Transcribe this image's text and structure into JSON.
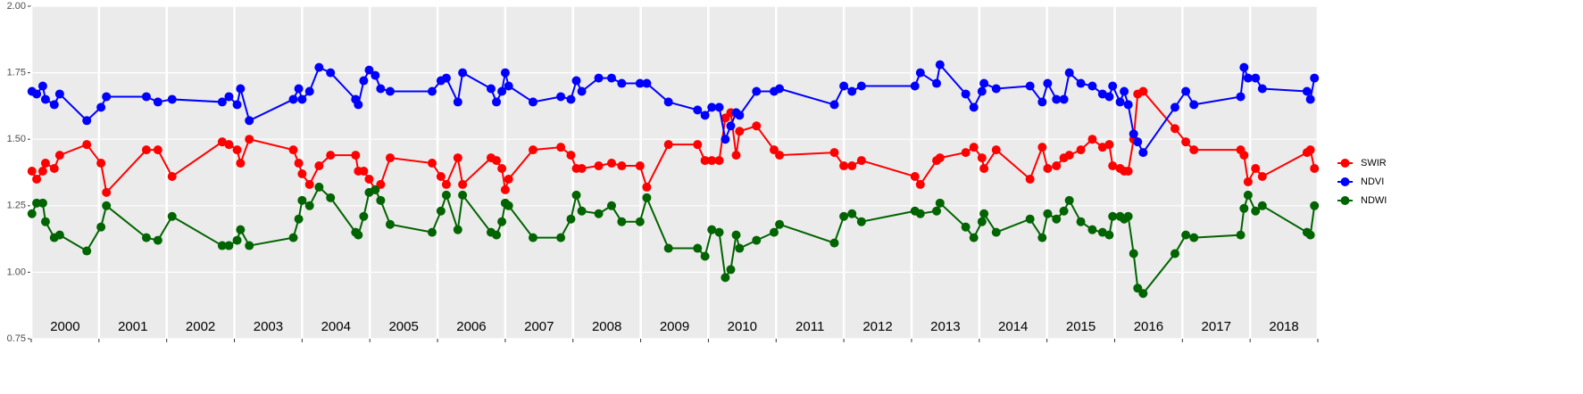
{
  "chart_data": {
    "type": "line",
    "x": [
      2000.01,
      2000.08,
      2000.17,
      2000.21,
      2000.34,
      2000.42,
      2000.82,
      2001.03,
      2001.11,
      2001.7,
      2001.87,
      2002.08,
      2002.82,
      2002.92,
      2003.04,
      2003.09,
      2003.22,
      2003.87,
      2003.95,
      2004.0,
      2004.11,
      2004.25,
      2004.42,
      2004.79,
      2004.83,
      2004.91,
      2004.99,
      2005.08,
      2005.16,
      2005.3,
      2005.92,
      2006.05,
      2006.13,
      2006.3,
      2006.37,
      2006.79,
      2006.87,
      2006.95,
      2007.0,
      2007.05,
      2007.41,
      2007.82,
      2007.97,
      2008.05,
      2008.13,
      2008.38,
      2008.57,
      2008.72,
      2008.99,
      2009.09,
      2009.41,
      2009.84,
      2009.95,
      2010.05,
      2010.16,
      2010.25,
      2010.33,
      2010.41,
      2010.46,
      2010.71,
      2010.97,
      2011.05,
      2011.86,
      2012.0,
      2012.12,
      2012.26,
      2013.05,
      2013.13,
      2013.37,
      2013.42,
      2013.8,
      2013.92,
      2014.04,
      2014.07,
      2014.25,
      2014.75,
      2014.93,
      2015.01,
      2015.14,
      2015.25,
      2015.33,
      2015.5,
      2015.67,
      2015.82,
      2015.92,
      2015.97,
      2016.08,
      2016.14,
      2016.2,
      2016.28,
      2016.34,
      2016.42,
      2016.89,
      2017.05,
      2017.17,
      2017.86,
      2017.91,
      2017.97,
      2018.08,
      2018.18,
      2018.84,
      2018.89,
      2018.95
    ],
    "series": [
      {
        "name": "SWIR",
        "color": "#ff0000",
        "values": [
          1.38,
          1.35,
          1.38,
          1.41,
          1.39,
          1.44,
          1.48,
          1.41,
          1.3,
          1.46,
          1.46,
          1.36,
          1.49,
          1.48,
          1.46,
          1.41,
          1.5,
          1.46,
          1.41,
          1.37,
          1.33,
          1.4,
          1.44,
          1.44,
          1.38,
          1.38,
          1.35,
          1.31,
          1.33,
          1.43,
          1.41,
          1.36,
          1.33,
          1.43,
          1.33,
          1.43,
          1.42,
          1.39,
          1.31,
          1.35,
          1.46,
          1.47,
          1.44,
          1.39,
          1.39,
          1.4,
          1.41,
          1.4,
          1.4,
          1.32,
          1.48,
          1.48,
          1.42,
          1.42,
          1.42,
          1.58,
          1.6,
          1.44,
          1.53,
          1.55,
          1.46,
          1.44,
          1.45,
          1.4,
          1.4,
          1.42,
          1.36,
          1.33,
          1.42,
          1.43,
          1.45,
          1.47,
          1.43,
          1.39,
          1.46,
          1.35,
          1.47,
          1.39,
          1.4,
          1.43,
          1.44,
          1.46,
          1.5,
          1.47,
          1.48,
          1.4,
          1.39,
          1.38,
          1.38,
          1.5,
          1.67,
          1.68,
          1.54,
          1.49,
          1.46,
          1.46,
          1.44,
          1.34,
          1.39,
          1.36,
          1.45,
          1.46,
          1.39
        ]
      },
      {
        "name": "NDVI",
        "color": "#0000ff",
        "values": [
          1.68,
          1.67,
          1.7,
          1.65,
          1.63,
          1.67,
          1.57,
          1.62,
          1.66,
          1.66,
          1.64,
          1.65,
          1.64,
          1.66,
          1.63,
          1.69,
          1.57,
          1.65,
          1.69,
          1.65,
          1.68,
          1.77,
          1.75,
          1.65,
          1.63,
          1.72,
          1.76,
          1.74,
          1.69,
          1.68,
          1.68,
          1.72,
          1.73,
          1.64,
          1.75,
          1.69,
          1.64,
          1.68,
          1.75,
          1.7,
          1.64,
          1.66,
          1.65,
          1.72,
          1.68,
          1.73,
          1.73,
          1.71,
          1.71,
          1.71,
          1.64,
          1.61,
          1.59,
          1.62,
          1.62,
          1.5,
          1.55,
          1.6,
          1.59,
          1.68,
          1.68,
          1.69,
          1.63,
          1.7,
          1.68,
          1.7,
          1.7,
          1.75,
          1.71,
          1.78,
          1.67,
          1.62,
          1.68,
          1.71,
          1.69,
          1.7,
          1.64,
          1.71,
          1.65,
          1.65,
          1.75,
          1.71,
          1.7,
          1.67,
          1.66,
          1.7,
          1.64,
          1.68,
          1.63,
          1.52,
          1.49,
          1.45,
          1.62,
          1.68,
          1.63,
          1.66,
          1.77,
          1.73,
          1.73,
          1.69,
          1.68,
          1.65,
          1.73
        ]
      },
      {
        "name": "NDWI",
        "color": "#006400",
        "values": [
          1.22,
          1.26,
          1.26,
          1.19,
          1.13,
          1.14,
          1.08,
          1.17,
          1.25,
          1.13,
          1.12,
          1.21,
          1.1,
          1.1,
          1.12,
          1.16,
          1.1,
          1.13,
          1.2,
          1.27,
          1.25,
          1.32,
          1.28,
          1.15,
          1.14,
          1.21,
          1.3,
          1.31,
          1.27,
          1.18,
          1.15,
          1.23,
          1.29,
          1.16,
          1.29,
          1.15,
          1.14,
          1.19,
          1.26,
          1.25,
          1.13,
          1.13,
          1.2,
          1.29,
          1.23,
          1.22,
          1.25,
          1.19,
          1.19,
          1.28,
          1.09,
          1.09,
          1.06,
          1.16,
          1.15,
          0.98,
          1.01,
          1.14,
          1.09,
          1.12,
          1.15,
          1.18,
          1.11,
          1.21,
          1.22,
          1.19,
          1.23,
          1.22,
          1.23,
          1.26,
          1.17,
          1.13,
          1.19,
          1.22,
          1.15,
          1.2,
          1.13,
          1.22,
          1.2,
          1.23,
          1.27,
          1.19,
          1.16,
          1.15,
          1.14,
          1.21,
          1.21,
          1.2,
          1.21,
          1.07,
          0.94,
          0.92,
          1.07,
          1.14,
          1.13,
          1.14,
          1.24,
          1.29,
          1.23,
          1.25,
          1.15,
          1.14,
          1.25
        ]
      }
    ],
    "xlim": [
      2000,
      2019
    ],
    "xticks": [
      2000,
      2001,
      2002,
      2003,
      2004,
      2005,
      2006,
      2007,
      2008,
      2009,
      2010,
      2011,
      2012,
      2013,
      2014,
      2015,
      2016,
      2017,
      2018,
      2019
    ],
    "year_labels": [
      2000,
      2001,
      2002,
      2003,
      2004,
      2005,
      2006,
      2007,
      2008,
      2009,
      2010,
      2011,
      2012,
      2013,
      2014,
      2015,
      2016,
      2017,
      2018
    ],
    "ylim": [
      0.75,
      2.0
    ],
    "yticks": [
      0.75,
      {
        "value": 1,
        "label": "1.00"
      },
      1.25,
      {
        "value": 1.5,
        "label": "1.50"
      },
      1.75,
      {
        "value": 2,
        "label": "2.00"
      }
    ],
    "grid": true,
    "legend": "right"
  }
}
